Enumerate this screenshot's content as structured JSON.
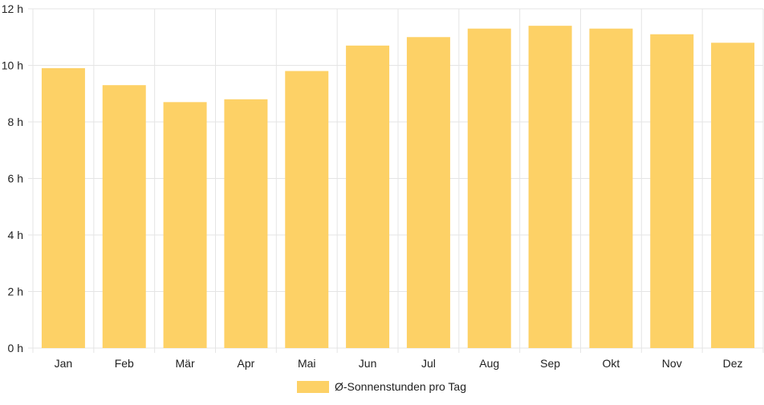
{
  "chart_data": {
    "type": "bar",
    "categories": [
      "Jan",
      "Feb",
      "Mär",
      "Apr",
      "Mai",
      "Jun",
      "Jul",
      "Aug",
      "Sep",
      "Okt",
      "Nov",
      "Dez"
    ],
    "series": [
      {
        "name": "Ø-Sonnenstunden pro Tag",
        "values": [
          9.9,
          9.3,
          8.7,
          8.8,
          9.8,
          10.7,
          11.0,
          11.3,
          11.4,
          11.3,
          11.1,
          10.8
        ]
      }
    ],
    "yticks": [
      "0 h",
      "2 h",
      "4 h",
      "6 h",
      "8 h",
      "10 h",
      "12 h"
    ],
    "ylim": [
      0,
      12
    ],
    "grid": true,
    "legend_position": "bottom",
    "colors": {
      "bar": "#fdd166",
      "grid": "#e5e5e5",
      "text": "#222222"
    }
  }
}
